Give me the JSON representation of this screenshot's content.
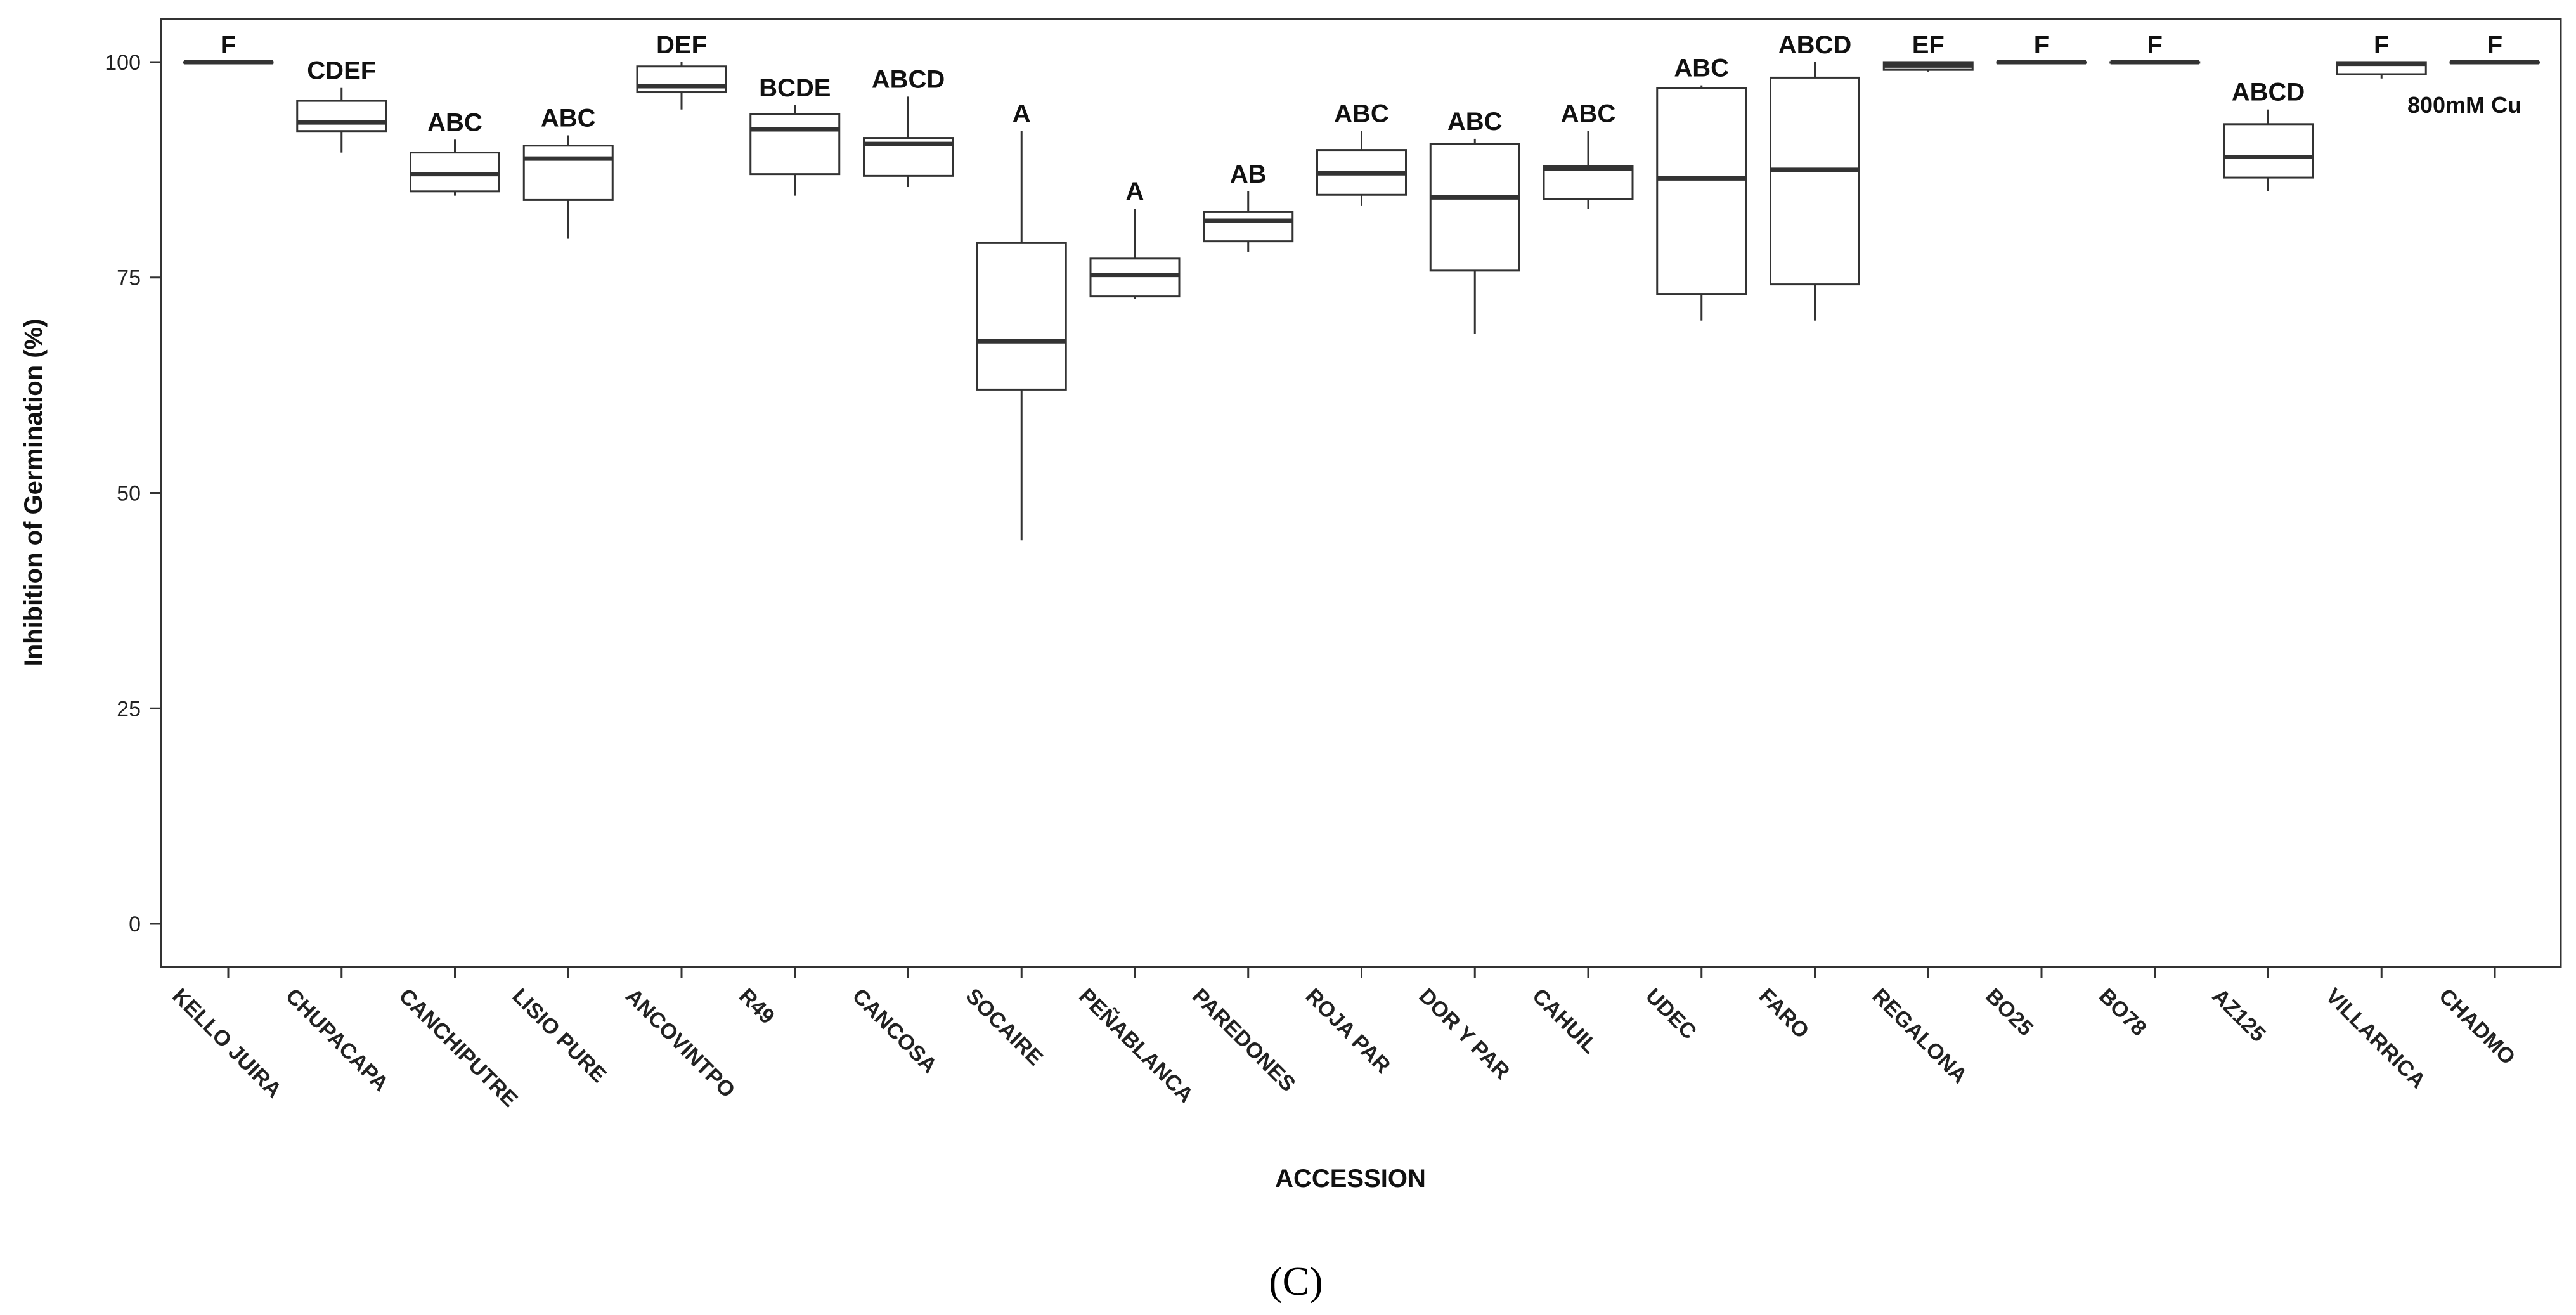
{
  "chart_data": {
    "type": "box",
    "title": "",
    "xlabel": "ACCESSION",
    "ylabel": "Inhibition of Germination (%)",
    "ylim": [
      -5,
      105
    ],
    "yticks": [
      0,
      25,
      50,
      75,
      100
    ],
    "annotation": "800mM Cu",
    "panel_label": "(C)",
    "categories": [
      "KELLO JUIRA",
      "CHUPACAPA",
      "CANCHIPUTRE",
      "LISIO PURE",
      "ANCOVINTPO",
      "R49",
      "CANCOSA",
      "SOCAIRE",
      "PEÑABLANCA",
      "PAREDONES",
      "ROJA PAR",
      "DOR Y PAR",
      "CAHUIL",
      "UDEC",
      "FARO",
      "REGALONA",
      "BO25",
      "BO78",
      "AZ125",
      "VILLARRICA",
      "CHADMO"
    ],
    "letters": [
      "F",
      "CDEF",
      "ABC",
      "ABC",
      "DEF",
      "BCDE",
      "ABCD",
      "A",
      "A",
      "AB",
      "ABC",
      "ABC",
      "ABC",
      "ABC",
      "ABCD",
      "EF",
      "F",
      "F",
      "ABCD",
      "F",
      "F"
    ],
    "boxes": [
      {
        "min": 100,
        "q1": 100,
        "median": 100,
        "q3": 100,
        "max": 100
      },
      {
        "min": 89.5,
        "q1": 92,
        "median": 93,
        "q3": 95.5,
        "max": 97
      },
      {
        "min": 84.5,
        "q1": 85,
        "median": 87,
        "q3": 89.5,
        "max": 91
      },
      {
        "min": 79.5,
        "q1": 84,
        "median": 88.8,
        "q3": 90.3,
        "max": 91.5
      },
      {
        "min": 94.5,
        "q1": 96.5,
        "median": 97.2,
        "q3": 99.5,
        "max": 100
      },
      {
        "min": 84.5,
        "q1": 87,
        "median": 92.2,
        "q3": 94,
        "max": 95
      },
      {
        "min": 85.5,
        "q1": 86.8,
        "median": 90.5,
        "q3": 91.2,
        "max": 96
      },
      {
        "min": 44.5,
        "q1": 62,
        "median": 67.6,
        "q3": 79,
        "max": 92
      },
      {
        "min": 72.5,
        "q1": 72.8,
        "median": 75.3,
        "q3": 77.2,
        "max": 83
      },
      {
        "min": 78,
        "q1": 79.2,
        "median": 81.6,
        "q3": 82.6,
        "max": 85
      },
      {
        "min": 83.3,
        "q1": 84.6,
        "median": 87.1,
        "q3": 89.8,
        "max": 92
      },
      {
        "min": 68.5,
        "q1": 75.8,
        "median": 84.3,
        "q3": 90.5,
        "max": 91.1
      },
      {
        "min": 83,
        "q1": 84.1,
        "median": 87.6,
        "q3": 87.9,
        "max": 92
      },
      {
        "min": 70,
        "q1": 73.1,
        "median": 86.5,
        "q3": 97,
        "max": 97.3
      },
      {
        "min": 70,
        "q1": 74.2,
        "median": 87.5,
        "q3": 98.2,
        "max": 100
      },
      {
        "min": 98.9,
        "q1": 99.1,
        "median": 99.6,
        "q3": 100,
        "max": 100
      },
      {
        "min": 100,
        "q1": 100,
        "median": 100,
        "q3": 100,
        "max": 100
      },
      {
        "min": 100,
        "q1": 100,
        "median": 100,
        "q3": 100,
        "max": 100
      },
      {
        "min": 85,
        "q1": 86.6,
        "median": 89,
        "q3": 92.8,
        "max": 94.5
      },
      {
        "min": 98.1,
        "q1": 98.6,
        "median": 99.8,
        "q3": 100,
        "max": 100
      },
      {
        "min": 100,
        "q1": 100,
        "median": 100,
        "q3": 100,
        "max": 100
      }
    ]
  }
}
